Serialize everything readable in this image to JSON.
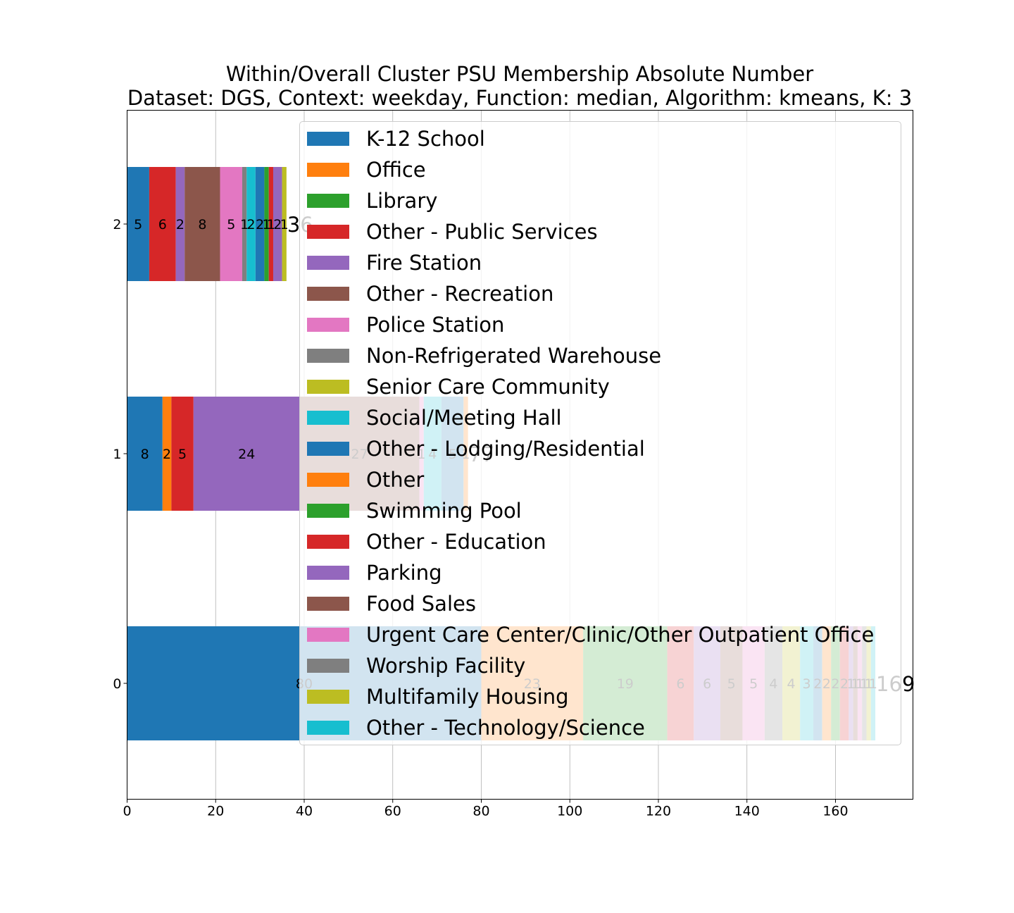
{
  "title": {
    "line1": "Within/Overall Cluster PSU Membership Absolute Number",
    "line2": "Dataset: DGS, Context: weekday, Function: median, Algorithm: kmeans, K: 3"
  },
  "chart_data": {
    "type": "bar",
    "orientation": "horizontal",
    "stacked": true,
    "categories": [
      "0",
      "1",
      "2"
    ],
    "xlim": [
      0,
      177.5
    ],
    "xticks": [
      0,
      20,
      40,
      60,
      80,
      100,
      120,
      140,
      160
    ],
    "grid": true,
    "legend_position": "upper-right",
    "totals": [
      169,
      77,
      36
    ],
    "series": [
      {
        "name": "K-12 School",
        "color": "#1f77b4",
        "values": [
          80,
          8,
          5
        ]
      },
      {
        "name": "Office",
        "color": "#ff7f0e",
        "values": [
          23,
          2,
          0
        ]
      },
      {
        "name": "Library",
        "color": "#2ca02c",
        "values": [
          19,
          0,
          0
        ]
      },
      {
        "name": "Other - Public Services",
        "color": "#d62728",
        "values": [
          6,
          5,
          6
        ]
      },
      {
        "name": "Fire Station",
        "color": "#9467bd",
        "values": [
          6,
          24,
          2
        ]
      },
      {
        "name": "Other - Recreation",
        "color": "#8c564b",
        "values": [
          5,
          27,
          8
        ]
      },
      {
        "name": "Police Station",
        "color": "#e377c2",
        "values": [
          5,
          1,
          5
        ]
      },
      {
        "name": "Non-Refrigerated Warehouse",
        "color": "#7f7f7f",
        "values": [
          4,
          0,
          1
        ]
      },
      {
        "name": "Senior Care Community",
        "color": "#bcbd22",
        "values": [
          4,
          0,
          0
        ]
      },
      {
        "name": "Social/Meeting Hall",
        "color": "#17becf",
        "values": [
          3,
          4,
          2
        ]
      },
      {
        "name": "Other - Lodging/Residential",
        "color": "#1f77b4",
        "values": [
          2,
          5,
          2
        ]
      },
      {
        "name": "Other",
        "color": "#ff7f0e",
        "values": [
          2,
          1,
          0
        ]
      },
      {
        "name": "Swimming Pool",
        "color": "#2ca02c",
        "values": [
          2,
          0,
          1
        ]
      },
      {
        "name": "Other - Education",
        "color": "#d62728",
        "values": [
          2,
          0,
          1
        ]
      },
      {
        "name": "Parking",
        "color": "#9467bd",
        "values": [
          1,
          0,
          2
        ]
      },
      {
        "name": "Food Sales",
        "color": "#8c564b",
        "values": [
          1,
          0,
          0
        ]
      },
      {
        "name": "Urgent Care Center/Clinic/Other Outpatient Office",
        "color": "#e377c2",
        "values": [
          1,
          0,
          0
        ]
      },
      {
        "name": "Worship Facility",
        "color": "#7f7f7f",
        "values": [
          1,
          0,
          0
        ]
      },
      {
        "name": "Multifamily Housing",
        "color": "#bcbd22",
        "values": [
          1,
          0,
          1
        ]
      },
      {
        "name": "Other - Technology/Science",
        "color": "#17becf",
        "values": [
          1,
          0,
          0
        ]
      }
    ]
  }
}
